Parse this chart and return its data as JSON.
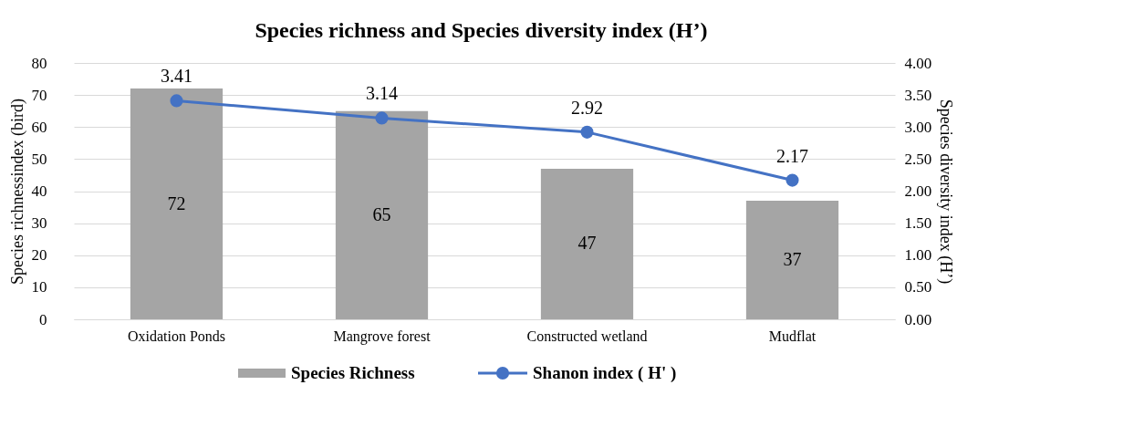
{
  "chart_data": {
    "type": "bar",
    "title": "Species richness and Species diversity index (H’)",
    "categories": [
      "Oxidation Ponds",
      "Mangrove forest",
      "Constructed wetland",
      "Mudflat"
    ],
    "series": [
      {
        "name": "Species Richness",
        "color": "#a5a5a5",
        "values": [
          72,
          65,
          47,
          37
        ]
      },
      {
        "name": "Shanon index ( H' )",
        "type": "line",
        "axis": "y2",
        "color": "#4472c4",
        "values": [
          3.41,
          3.14,
          2.92,
          2.17
        ]
      }
    ],
    "ylabel": "Species richnessindex (bird)",
    "y2label": "Species diversity index (H’)",
    "ylim": [
      0,
      80
    ],
    "yticks": [
      0,
      10,
      20,
      30,
      40,
      50,
      60,
      70,
      80
    ],
    "y2lim": [
      0,
      4
    ],
    "y2ticks": [
      {
        "value": 0,
        "label": "0.00"
      },
      {
        "value": 0.5,
        "label": "0.50"
      },
      {
        "value": 1,
        "label": "1.00"
      },
      {
        "value": 1.5,
        "label": "1.50"
      },
      {
        "value": 2,
        "label": "2.00"
      },
      {
        "value": 2.5,
        "label": "2.50"
      },
      {
        "value": 3,
        "label": "3.00"
      },
      {
        "value": 3.5,
        "label": "3.50"
      },
      {
        "value": 4,
        "label": "4.00"
      }
    ],
    "data_labels": true,
    "grid": "y",
    "legend": "bottom",
    "marker": "circle",
    "line_style": "solid"
  }
}
